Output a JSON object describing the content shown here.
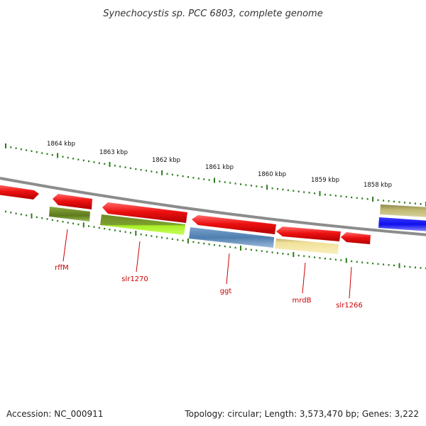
{
  "title": "Synechocystis sp. PCC 6803, complete genome",
  "accession": "Accession: NC_000911",
  "summary": "Topology: circular; Length: 3,573,470 bp; Genes: 3,222",
  "ruler_labels": [
    "1864 kbp",
    "1863 kbp",
    "1862 kbp",
    "1861 kbp",
    "1860 kbp",
    "1859 kbp",
    "1858 kbp"
  ],
  "gene_labels": [
    "rffM",
    "slr1270",
    "ggt",
    "mrdB",
    "slr1266"
  ],
  "colors": {
    "backbone": "#8c8c8c",
    "ruler_ticks": "#2a7a1a",
    "forward_gene": "#ee1111",
    "label": "#cc0000",
    "olive": "#6b8a22",
    "lime": "#a8ee22",
    "steel_blue": "#4f7fb0",
    "pale_yellow": "#f0e098",
    "khaki": "#bfb870",
    "blue": "#1010ee"
  }
}
